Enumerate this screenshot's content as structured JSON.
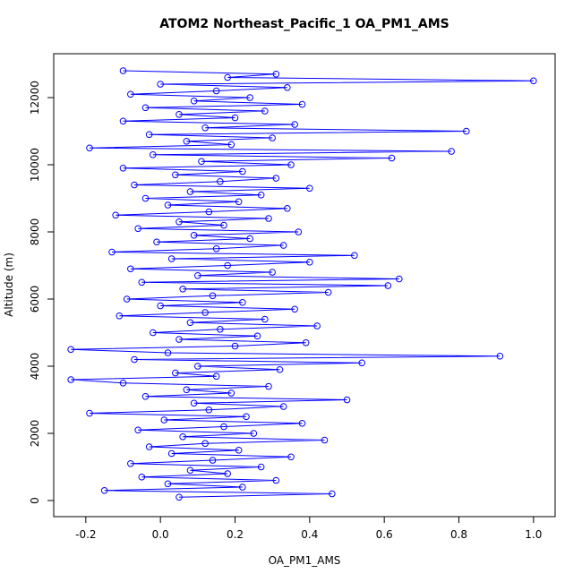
{
  "chart_data": {
    "type": "line",
    "title": "ATOM2 Northeast_Pacific_1 OA_PM1_AMS",
    "xlabel": "OA_PM1_AMS",
    "ylabel": "Altitude (m)",
    "color": "#0000ff",
    "markers": true,
    "x": [
      0.05,
      0.46,
      -0.15,
      0.22,
      0.02,
      0.31,
      -0.05,
      0.18,
      0.08,
      0.27,
      -0.08,
      0.14,
      0.35,
      0.03,
      0.21,
      -0.03,
      0.12,
      0.44,
      0.06,
      0.25,
      -0.06,
      0.17,
      0.38,
      0.01,
      0.23,
      -0.19,
      0.13,
      0.33,
      0.09,
      0.5,
      -0.04,
      0.19,
      0.07,
      0.29,
      -0.1,
      -0.24,
      0.15,
      0.04,
      0.32,
      0.1,
      0.54,
      -0.07,
      0.91,
      0.02,
      -0.24,
      0.2,
      0.39,
      0.05,
      0.26,
      -0.02,
      0.16,
      0.42,
      0.08,
      0.28,
      -0.11,
      0.12,
      0.36,
      0.0,
      0.22,
      -0.09,
      0.14,
      0.45,
      0.06,
      0.61,
      -0.05,
      0.64,
      0.1,
      0.3,
      -0.08,
      0.18,
      0.4,
      0.03,
      0.52,
      -0.13,
      0.15,
      0.33,
      -0.01,
      0.24,
      0.09,
      0.37,
      -0.06,
      0.17,
      0.05,
      0.29,
      -0.12,
      0.13,
      0.34,
      0.02,
      0.21,
      -0.04,
      0.27,
      0.08,
      0.4,
      -0.07,
      0.16,
      0.31,
      0.04,
      0.22,
      -0.1,
      0.35,
      0.11,
      0.62,
      -0.02,
      0.78,
      -0.19,
      0.19,
      0.07,
      0.3,
      -0.03,
      0.82,
      0.12,
      0.36,
      -0.1,
      0.2,
      0.05,
      0.28,
      -0.04,
      0.38,
      0.09,
      0.24,
      -0.08,
      0.15,
      0.34,
      0.0,
      1.0,
      0.18,
      0.31,
      -0.1
    ],
    "values": [
      100,
      200,
      300,
      400,
      500,
      600,
      700,
      800,
      900,
      1000,
      1100,
      1200,
      1300,
      1400,
      1500,
      1600,
      1700,
      1800,
      1900,
      2000,
      2100,
      2200,
      2300,
      2400,
      2500,
      2600,
      2700,
      2800,
      2900,
      3000,
      3100,
      3200,
      3300,
      3400,
      3500,
      3600,
      3700,
      3800,
      3900,
      4000,
      4100,
      4200,
      4300,
      4400,
      4500,
      4600,
      4700,
      4800,
      4900,
      5000,
      5100,
      5200,
      5300,
      5400,
      5500,
      5600,
      5700,
      5800,
      5900,
      6000,
      6100,
      6200,
      6300,
      6400,
      6500,
      6600,
      6700,
      6800,
      6900,
      7000,
      7100,
      7200,
      7300,
      7400,
      7500,
      7600,
      7700,
      7800,
      7900,
      8000,
      8100,
      8200,
      8300,
      8400,
      8500,
      8600,
      8700,
      8800,
      8900,
      9000,
      9100,
      9200,
      9300,
      9400,
      9500,
      9600,
      9700,
      9800,
      9900,
      10000,
      10100,
      10200,
      10300,
      10400,
      10500,
      10600,
      10700,
      10800,
      10900,
      11000,
      11100,
      11200,
      11300,
      11400,
      11500,
      11600,
      11700,
      11800,
      11900,
      12000,
      12100,
      12200,
      12300,
      12400,
      12500,
      12600,
      12700,
      12800
    ],
    "xlim": [
      -0.286,
      1.058
    ],
    "ylim": [
      -480,
      13307
    ],
    "xticks": [
      -0.2,
      {
        "value": 0,
        "label": "0.0"
      },
      0.2,
      0.4,
      0.6,
      0.8,
      {
        "value": 1,
        "label": "1.0"
      }
    ],
    "yticks": [
      0,
      2000,
      4000,
      6000,
      8000,
      10000,
      12000
    ]
  }
}
